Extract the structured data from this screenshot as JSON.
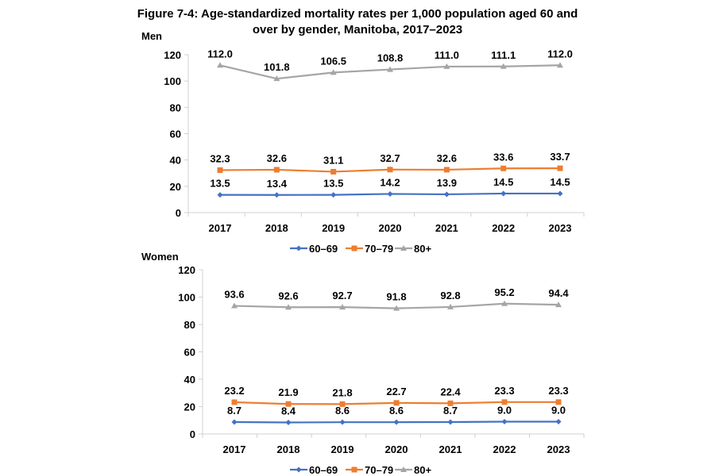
{
  "chart_data": [
    {
      "type": "line",
      "title": "Figure 7-4: Age-standardized mortality rates per 1,000 population aged 60 and over by gender, Manitoba, 2017–2023",
      "panel_label": "Men",
      "categories": [
        "2017",
        "2018",
        "2019",
        "2020",
        "2021",
        "2022",
        "2023"
      ],
      "ylim": [
        0,
        120
      ],
      "yticks": [
        0,
        20,
        40,
        60,
        80,
        100,
        120
      ],
      "grid": false,
      "legend": "bottom",
      "series": [
        {
          "name": "60–69",
          "color": "#4472C4",
          "marker": "diamond",
          "values": [
            13.5,
            13.4,
            13.5,
            14.2,
            13.9,
            14.5,
            14.5
          ],
          "labels": [
            "13.5",
            "13.4",
            "13.5",
            "14.2",
            "13.9",
            "14.5",
            "14.5"
          ]
        },
        {
          "name": "70–79",
          "color": "#ED7D31",
          "marker": "square",
          "values": [
            32.3,
            32.6,
            31.1,
            32.7,
            32.6,
            33.6,
            33.7
          ],
          "labels": [
            "32.3",
            "32.6",
            "31.1",
            "32.7",
            "32.6",
            "33.6",
            "33.7"
          ]
        },
        {
          "name": "80+",
          "color": "#A5A5A5",
          "marker": "triangle",
          "values": [
            112.0,
            101.8,
            106.5,
            108.8,
            111.0,
            111.1,
            112.0
          ],
          "labels": [
            "112.0",
            "101.8",
            "106.5",
            "108.8",
            "111.0",
            "111.1",
            "112.0"
          ]
        }
      ]
    },
    {
      "type": "line",
      "panel_label": "Women",
      "categories": [
        "2017",
        "2018",
        "2019",
        "2020",
        "2021",
        "2022",
        "2023"
      ],
      "ylim": [
        0,
        120
      ],
      "yticks": [
        0,
        20,
        40,
        60,
        80,
        100,
        120
      ],
      "grid": false,
      "legend": "bottom",
      "series": [
        {
          "name": "60–69",
          "color": "#4472C4",
          "marker": "diamond",
          "values": [
            8.7,
            8.4,
            8.6,
            8.6,
            8.7,
            9.0,
            9.0
          ],
          "labels": [
            "8.7",
            "8.4",
            "8.6",
            "8.6",
            "8.7",
            "9.0",
            "9.0"
          ]
        },
        {
          "name": "70–79",
          "color": "#ED7D31",
          "marker": "square",
          "values": [
            23.2,
            21.9,
            21.8,
            22.7,
            22.4,
            23.3,
            23.3
          ],
          "labels": [
            "23.2",
            "21.9",
            "21.8",
            "22.7",
            "22.4",
            "23.3",
            "23.3"
          ]
        },
        {
          "name": "80+",
          "color": "#A5A5A5",
          "marker": "triangle",
          "values": [
            93.6,
            92.6,
            92.7,
            91.8,
            92.8,
            95.2,
            94.4
          ],
          "labels": [
            "93.6",
            "92.6",
            "92.7",
            "91.8",
            "92.8",
            "95.2",
            "94.4"
          ]
        }
      ]
    }
  ]
}
